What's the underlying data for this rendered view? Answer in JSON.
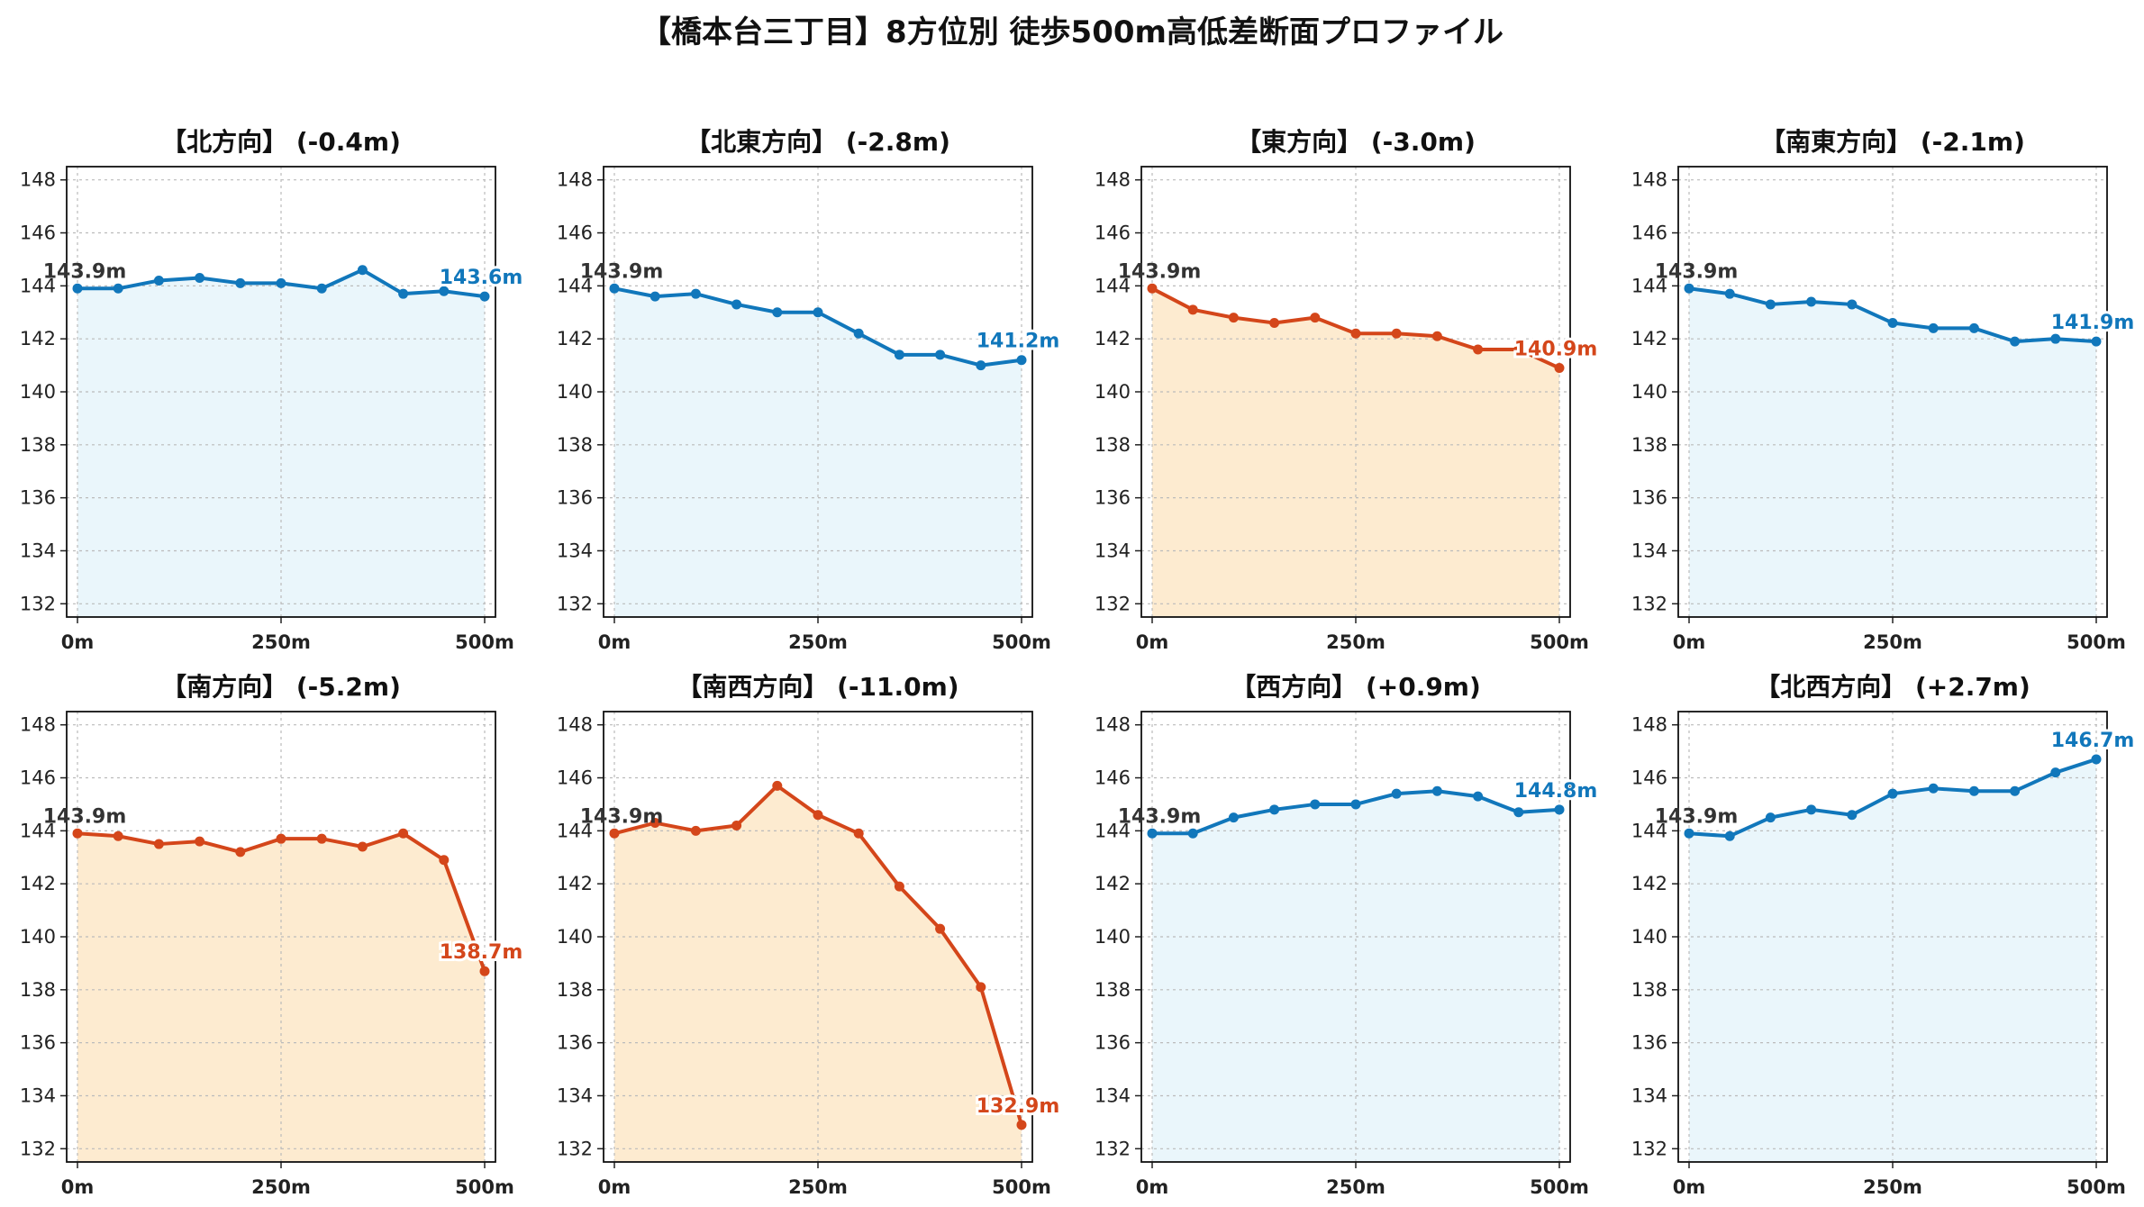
{
  "title": "【橋本台三丁目】8方位別 徒歩500m高低差断面プロファイル",
  "colors": {
    "up": "#1177bb",
    "up_fill": "#eaf6fb",
    "down": "#d4461a",
    "down_fill": "#fdebd0",
    "grid": "#bbbbbb",
    "start_label": "#333333"
  },
  "chart_data": [
    {
      "type": "line",
      "title": "【北方向】 (-0.4m)",
      "trend": "up",
      "x": [
        0,
        50,
        100,
        150,
        200,
        250,
        300,
        350,
        400,
        450,
        500
      ],
      "y": [
        143.9,
        143.9,
        144.2,
        144.3,
        144.1,
        144.1,
        143.9,
        144.6,
        143.7,
        143.8,
        143.6
      ],
      "start_label": "143.9m",
      "end_label": "143.6m",
      "xticks": [
        "0m",
        "250m",
        "500m"
      ],
      "xlim": [
        0,
        500
      ],
      "yticks": [
        132,
        134,
        136,
        138,
        140,
        142,
        144,
        146,
        148
      ],
      "ylim": [
        131.5,
        148.5
      ],
      "grid": true
    },
    {
      "type": "line",
      "title": "【北東方向】 (-2.8m)",
      "trend": "up",
      "x": [
        0,
        50,
        100,
        150,
        200,
        250,
        300,
        350,
        400,
        450,
        500
      ],
      "y": [
        143.9,
        143.6,
        143.7,
        143.3,
        143.0,
        143.0,
        142.2,
        141.4,
        141.4,
        141.0,
        141.2
      ],
      "start_label": "143.9m",
      "end_label": "141.2m",
      "xticks": [
        "0m",
        "250m",
        "500m"
      ],
      "xlim": [
        0,
        500
      ],
      "yticks": [
        132,
        134,
        136,
        138,
        140,
        142,
        144,
        146,
        148
      ],
      "ylim": [
        131.5,
        148.5
      ],
      "grid": true
    },
    {
      "type": "line",
      "title": "【東方向】 (-3.0m)",
      "trend": "down",
      "x": [
        0,
        50,
        100,
        150,
        200,
        250,
        300,
        350,
        400,
        450,
        500
      ],
      "y": [
        143.9,
        143.1,
        142.8,
        142.6,
        142.8,
        142.2,
        142.2,
        142.1,
        141.6,
        141.6,
        140.9
      ],
      "start_label": "143.9m",
      "end_label": "140.9m",
      "xticks": [
        "0m",
        "250m",
        "500m"
      ],
      "xlim": [
        0,
        500
      ],
      "yticks": [
        132,
        134,
        136,
        138,
        140,
        142,
        144,
        146,
        148
      ],
      "ylim": [
        131.5,
        148.5
      ],
      "grid": true
    },
    {
      "type": "line",
      "title": "【南東方向】 (-2.1m)",
      "trend": "up",
      "x": [
        0,
        50,
        100,
        150,
        200,
        250,
        300,
        350,
        400,
        450,
        500
      ],
      "y": [
        143.9,
        143.7,
        143.3,
        143.4,
        143.3,
        142.6,
        142.4,
        142.4,
        141.9,
        142.0,
        141.9
      ],
      "start_label": "143.9m",
      "end_label": "141.9m",
      "xticks": [
        "0m",
        "250m",
        "500m"
      ],
      "xlim": [
        0,
        500
      ],
      "yticks": [
        132,
        134,
        136,
        138,
        140,
        142,
        144,
        146,
        148
      ],
      "ylim": [
        131.5,
        148.5
      ],
      "grid": true
    },
    {
      "type": "line",
      "title": "【南方向】 (-5.2m)",
      "trend": "down",
      "x": [
        0,
        50,
        100,
        150,
        200,
        250,
        300,
        350,
        400,
        450,
        500
      ],
      "y": [
        143.9,
        143.8,
        143.5,
        143.6,
        143.2,
        143.7,
        143.7,
        143.4,
        143.9,
        142.9,
        138.7
      ],
      "start_label": "143.9m",
      "end_label": "138.7m",
      "xticks": [
        "0m",
        "250m",
        "500m"
      ],
      "xlim": [
        0,
        500
      ],
      "yticks": [
        132,
        134,
        136,
        138,
        140,
        142,
        144,
        146,
        148
      ],
      "ylim": [
        131.5,
        148.5
      ],
      "grid": true
    },
    {
      "type": "line",
      "title": "【南西方向】 (-11.0m)",
      "trend": "down",
      "x": [
        0,
        50,
        100,
        150,
        200,
        250,
        300,
        350,
        400,
        450,
        500
      ],
      "y": [
        143.9,
        144.3,
        144.0,
        144.2,
        145.7,
        144.6,
        143.9,
        141.9,
        140.3,
        138.1,
        132.9
      ],
      "start_label": "143.9m",
      "end_label": "132.9m",
      "xticks": [
        "0m",
        "250m",
        "500m"
      ],
      "xlim": [
        0,
        500
      ],
      "yticks": [
        132,
        134,
        136,
        138,
        140,
        142,
        144,
        146,
        148
      ],
      "ylim": [
        131.5,
        148.5
      ],
      "grid": true
    },
    {
      "type": "line",
      "title": "【西方向】 (+0.9m)",
      "trend": "up",
      "x": [
        0,
        50,
        100,
        150,
        200,
        250,
        300,
        350,
        400,
        450,
        500
      ],
      "y": [
        143.9,
        143.9,
        144.5,
        144.8,
        145.0,
        145.0,
        145.4,
        145.5,
        145.3,
        144.7,
        144.8
      ],
      "start_label": "143.9m",
      "end_label": "144.8m",
      "xticks": [
        "0m",
        "250m",
        "500m"
      ],
      "xlim": [
        0,
        500
      ],
      "yticks": [
        132,
        134,
        136,
        138,
        140,
        142,
        144,
        146,
        148
      ],
      "ylim": [
        131.5,
        148.5
      ],
      "grid": true
    },
    {
      "type": "line",
      "title": "【北西方向】 (+2.7m)",
      "trend": "up",
      "x": [
        0,
        50,
        100,
        150,
        200,
        250,
        300,
        350,
        400,
        450,
        500
      ],
      "y": [
        143.9,
        143.8,
        144.5,
        144.8,
        144.6,
        145.4,
        145.6,
        145.5,
        145.5,
        146.2,
        146.7
      ],
      "start_label": "143.9m",
      "end_label": "146.7m",
      "xticks": [
        "0m",
        "250m",
        "500m"
      ],
      "xlim": [
        0,
        500
      ],
      "yticks": [
        132,
        134,
        136,
        138,
        140,
        142,
        144,
        146,
        148
      ],
      "ylim": [
        131.5,
        148.5
      ],
      "grid": true
    }
  ]
}
